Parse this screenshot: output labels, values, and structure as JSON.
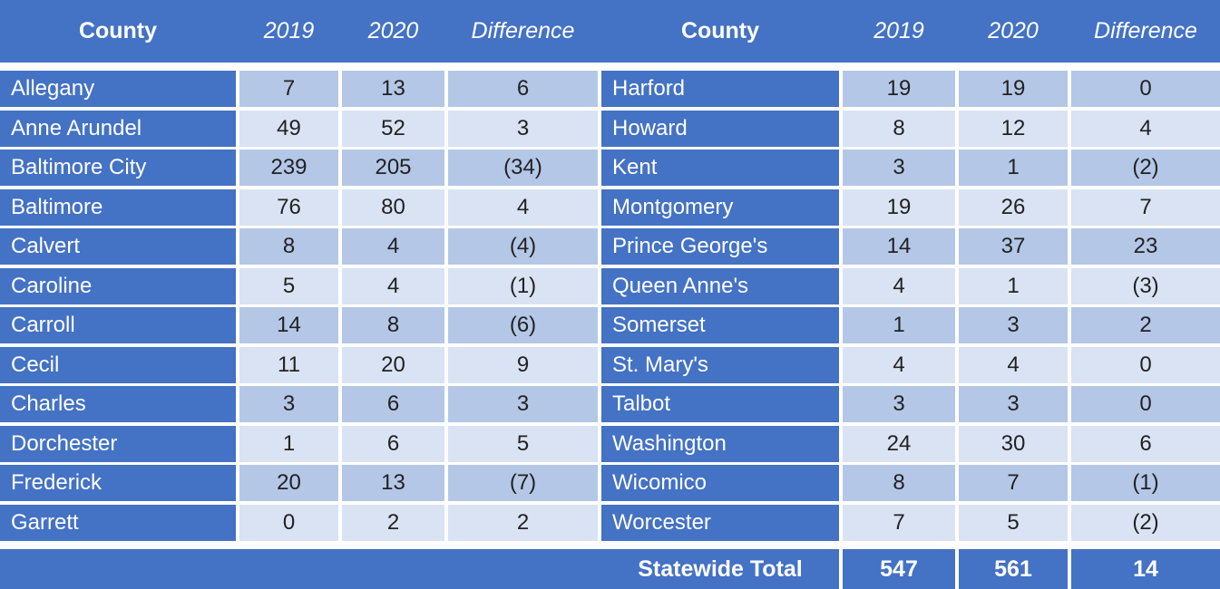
{
  "colors": {
    "table_blue": "#4472C4",
    "row_shade_dark": "#B4C7E7",
    "row_shade_light": "#DAE3F3",
    "border_white": "#FFFFFF",
    "header_text": "#FFFFFF",
    "value_text": "#222222"
  },
  "chart_data": {
    "type": "table",
    "title": "",
    "columns": [
      "County",
      "2019",
      "2020",
      "Difference"
    ],
    "left_rows": [
      [
        "Allegany",
        "7",
        "13",
        "6"
      ],
      [
        "Anne Arundel",
        "49",
        "52",
        "3"
      ],
      [
        "Baltimore City",
        "239",
        "205",
        "(34)"
      ],
      [
        "Baltimore",
        "76",
        "80",
        "4"
      ],
      [
        "Calvert",
        "8",
        "4",
        "(4)"
      ],
      [
        "Caroline",
        "5",
        "4",
        "(1)"
      ],
      [
        "Carroll",
        "14",
        "8",
        "(6)"
      ],
      [
        "Cecil",
        "11",
        "20",
        "9"
      ],
      [
        "Charles",
        "3",
        "6",
        "3"
      ],
      [
        "Dorchester",
        "1",
        "6",
        "5"
      ],
      [
        "Frederick",
        "20",
        "13",
        "(7)"
      ],
      [
        "Garrett",
        "0",
        "2",
        "2"
      ]
    ],
    "right_rows": [
      [
        "Harford",
        "19",
        "19",
        "0"
      ],
      [
        "Howard",
        "8",
        "12",
        "4"
      ],
      [
        "Kent",
        "3",
        "1",
        "(2)"
      ],
      [
        "Montgomery",
        "19",
        "26",
        "7"
      ],
      [
        "Prince George's",
        "14",
        "37",
        "23"
      ],
      [
        "Queen Anne's",
        "4",
        "1",
        "(3)"
      ],
      [
        "Somerset",
        "1",
        "3",
        "2"
      ],
      [
        "St. Mary's",
        "4",
        "4",
        "0"
      ],
      [
        "Talbot",
        "3",
        "3",
        "0"
      ],
      [
        "Washington",
        "24",
        "30",
        "6"
      ],
      [
        "Wicomico",
        "8",
        "7",
        "(1)"
      ],
      [
        "Worcester",
        "7",
        "5",
        "(2)"
      ]
    ],
    "total_row": [
      "Statewide Total",
      "547",
      "561",
      "14"
    ]
  }
}
